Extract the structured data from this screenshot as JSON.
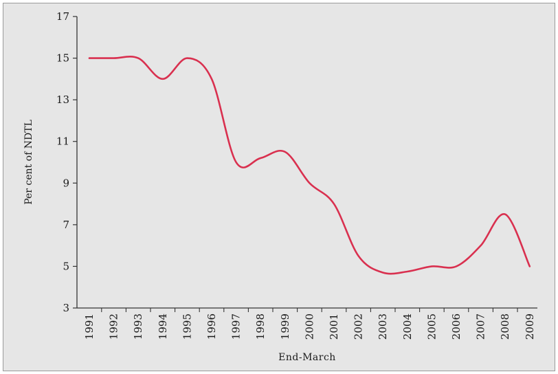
{
  "chart_data": {
    "type": "line",
    "title": "",
    "xlabel": "End-March",
    "ylabel": "Per cent of NDTL",
    "ylim": [
      3,
      17
    ],
    "yticks": [
      3,
      5,
      7,
      9,
      11,
      13,
      15,
      17
    ],
    "x": [
      "1991",
      "1992",
      "1993",
      "1994",
      "1995",
      "1996",
      "1997",
      "1998",
      "1999",
      "2000",
      "2001",
      "2002",
      "2003",
      "2004",
      "2005",
      "2006",
      "2007",
      "2008",
      "2009"
    ],
    "series": [
      {
        "values": [
          15.0,
          15.0,
          15.0,
          14.0,
          15.0,
          14.0,
          10.0,
          10.2,
          10.5,
          9.0,
          8.0,
          5.5,
          4.7,
          4.75,
          5.0,
          5.0,
          6.0,
          7.5,
          5.0
        ]
      }
    ],
    "line_color": "#d9304f",
    "grid": false,
    "legend": "none"
  }
}
